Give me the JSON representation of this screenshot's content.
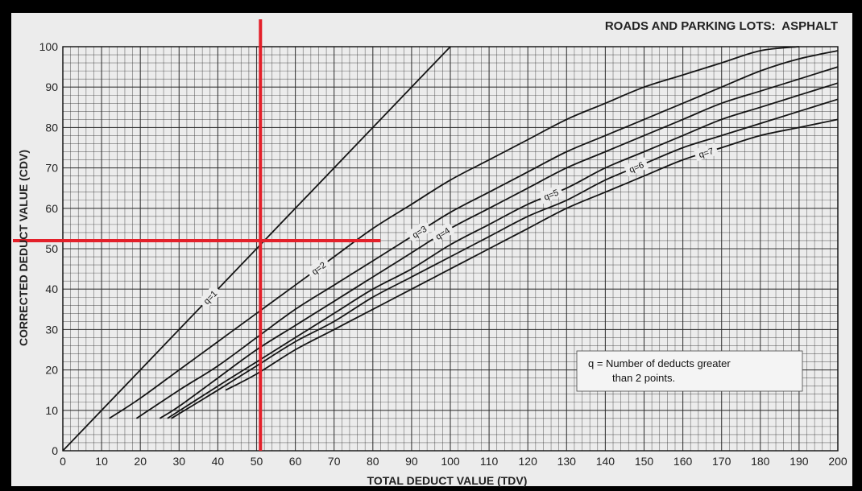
{
  "chart_data": {
    "type": "line",
    "title": "ROADS AND PARKING LOTS:  ASPHALT",
    "xlabel": "TOTAL DEDUCT VALUE (TDV)",
    "ylabel": "CORRECTED DEDUCT VALUE (CDV)",
    "xlim": [
      0,
      200
    ],
    "ylim": [
      0,
      100
    ],
    "x_ticks": [
      "0",
      "10",
      "20",
      "30",
      "40",
      "50",
      "60",
      "70",
      "80",
      "90",
      "100",
      "110",
      "120",
      "130",
      "140",
      "150",
      "160",
      "170",
      "180",
      "190",
      "200"
    ],
    "y_ticks": [
      "0",
      "10",
      "20",
      "30",
      "40",
      "50",
      "60",
      "70",
      "80",
      "90",
      "100"
    ],
    "grid": true,
    "series": [
      {
        "name": "q=1",
        "label": "q=1",
        "x": [
          0,
          20,
          40,
          60,
          80,
          100
        ],
        "y": [
          0,
          20,
          40,
          60,
          80,
          100
        ]
      },
      {
        "name": "q=2",
        "label": "q=2",
        "x": [
          12,
          20,
          30,
          40,
          50,
          60,
          70,
          80,
          90,
          100,
          110,
          120,
          130,
          140,
          150,
          160,
          170,
          180,
          190
        ],
        "y": [
          8,
          13,
          20,
          27,
          34,
          41,
          48,
          55,
          61,
          67,
          72,
          77,
          82,
          86,
          90,
          93,
          96,
          99,
          100
        ]
      },
      {
        "name": "q=3",
        "label": "q=3",
        "x": [
          19,
          30,
          40,
          50,
          60,
          70,
          80,
          90,
          100,
          110,
          120,
          130,
          140,
          150,
          160,
          170,
          180,
          190,
          200
        ],
        "y": [
          8,
          15,
          21,
          28,
          35,
          41,
          47,
          53,
          59,
          64,
          69,
          74,
          78,
          82,
          86,
          90,
          94,
          97,
          99
        ]
      },
      {
        "name": "q=4",
        "label": "q=4",
        "x": [
          25,
          30,
          40,
          50,
          60,
          70,
          80,
          90,
          100,
          110,
          120,
          130,
          140,
          150,
          160,
          170,
          180,
          190,
          200
        ],
        "y": [
          8,
          11,
          18,
          25,
          31,
          37,
          43,
          49,
          55,
          60,
          65,
          70,
          74,
          78,
          82,
          86,
          89,
          92,
          95
        ]
      },
      {
        "name": "q=5",
        "label": "q=5",
        "x": [
          27,
          40,
          50,
          60,
          70,
          80,
          90,
          100,
          110,
          120,
          130,
          140,
          150,
          160,
          170,
          180,
          190,
          200
        ],
        "y": [
          8,
          16,
          22,
          28,
          34,
          40,
          45,
          51,
          56,
          61,
          65,
          70,
          74,
          78,
          82,
          85,
          88,
          91
        ]
      },
      {
        "name": "q=6",
        "label": "q=6",
        "x": [
          28,
          40,
          50,
          60,
          70,
          80,
          90,
          100,
          110,
          120,
          130,
          140,
          150,
          160,
          170,
          180,
          190,
          200
        ],
        "y": [
          8,
          15,
          21,
          27,
          32,
          38,
          43,
          48,
          53,
          58,
          62,
          67,
          71,
          75,
          78,
          81,
          84,
          87
        ]
      },
      {
        "name": "q=7",
        "label": "q=7",
        "x": [
          42,
          50,
          60,
          70,
          80,
          90,
          100,
          110,
          120,
          130,
          140,
          150,
          160,
          170,
          180,
          190,
          200
        ],
        "y": [
          15,
          19,
          25,
          30,
          35,
          40,
          45,
          50,
          55,
          60,
          64,
          68,
          72,
          75,
          78,
          80,
          82
        ]
      }
    ],
    "annotation_lines": {
      "vertical_x": 51,
      "horizontal_y": 52,
      "color": "#e3202a"
    },
    "note": {
      "line1": "q = Number of deducts greater",
      "line2": "than 2 points."
    },
    "colors": {
      "frame": "#000000",
      "paper": "#ececec",
      "grid": "#2a2a2a",
      "curve": "#151515",
      "marker": "#e3202a"
    }
  }
}
